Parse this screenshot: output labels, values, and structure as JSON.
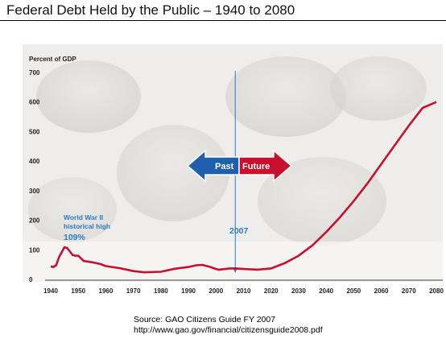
{
  "header": {
    "title": "Federal Debt Held by the Public – 1940 to 2080"
  },
  "footer": {
    "source": "Source: GAO Citizens Guide FY 2007",
    "url": "http://www.gao.gov/financial/citizensguide2008.pdf"
  },
  "colors": {
    "line": "#c8102e",
    "accent_blue": "#2b7bc1",
    "arrow_red": "#c8102e",
    "arrow_blue": "#1f5fae"
  },
  "arrow": {
    "past": "Past",
    "future": "Future"
  },
  "annotations": {
    "ww2_line1": "World War II",
    "ww2_line2": "historical high",
    "ww2_value": "109%",
    "marker_year": "2007"
  },
  "chart_data": {
    "type": "line",
    "title": "Federal Debt Held by the Public – 1940 to 2080",
    "ylabel": "Percent of GDP",
    "xlabel": "",
    "xlim": [
      1940,
      2080
    ],
    "ylim": [
      0,
      700
    ],
    "x_ticks": [
      "1940",
      "1950",
      "1960",
      "1970",
      "1980",
      "1990",
      "2000",
      "2010",
      "2020",
      "2030",
      "2040",
      "2050",
      "2060",
      "2070",
      "2080"
    ],
    "y_ticks": [
      "0",
      "100",
      "200",
      "300",
      "400",
      "500",
      "600",
      "700"
    ],
    "grid": false,
    "vline_x": 2007,
    "series": [
      {
        "x": [
          1940,
          1941,
          1942,
          1943,
          1944,
          1945,
          1946,
          1947,
          1948,
          1949,
          1950,
          1952,
          1955,
          1958,
          1960,
          1965,
          1970,
          1974,
          1980,
          1985,
          1990,
          1993,
          1995,
          1998,
          2000,
          2001,
          2005,
          2007,
          2010,
          2015,
          2020,
          2025,
          2030,
          2035,
          2040,
          2045,
          2050,
          2055,
          2060,
          2065,
          2070,
          2075,
          2080
        ],
        "y": [
          44,
          42,
          48,
          75,
          92,
          109,
          106,
          94,
          82,
          80,
          80,
          62,
          58,
          52,
          45,
          38,
          28,
          24,
          26,
          36,
          42,
          48,
          49,
          42,
          35,
          33,
          37,
          37,
          35,
          33,
          37,
          55,
          80,
          115,
          160,
          210,
          265,
          325,
          390,
          455,
          520,
          580,
          600
        ]
      }
    ]
  }
}
